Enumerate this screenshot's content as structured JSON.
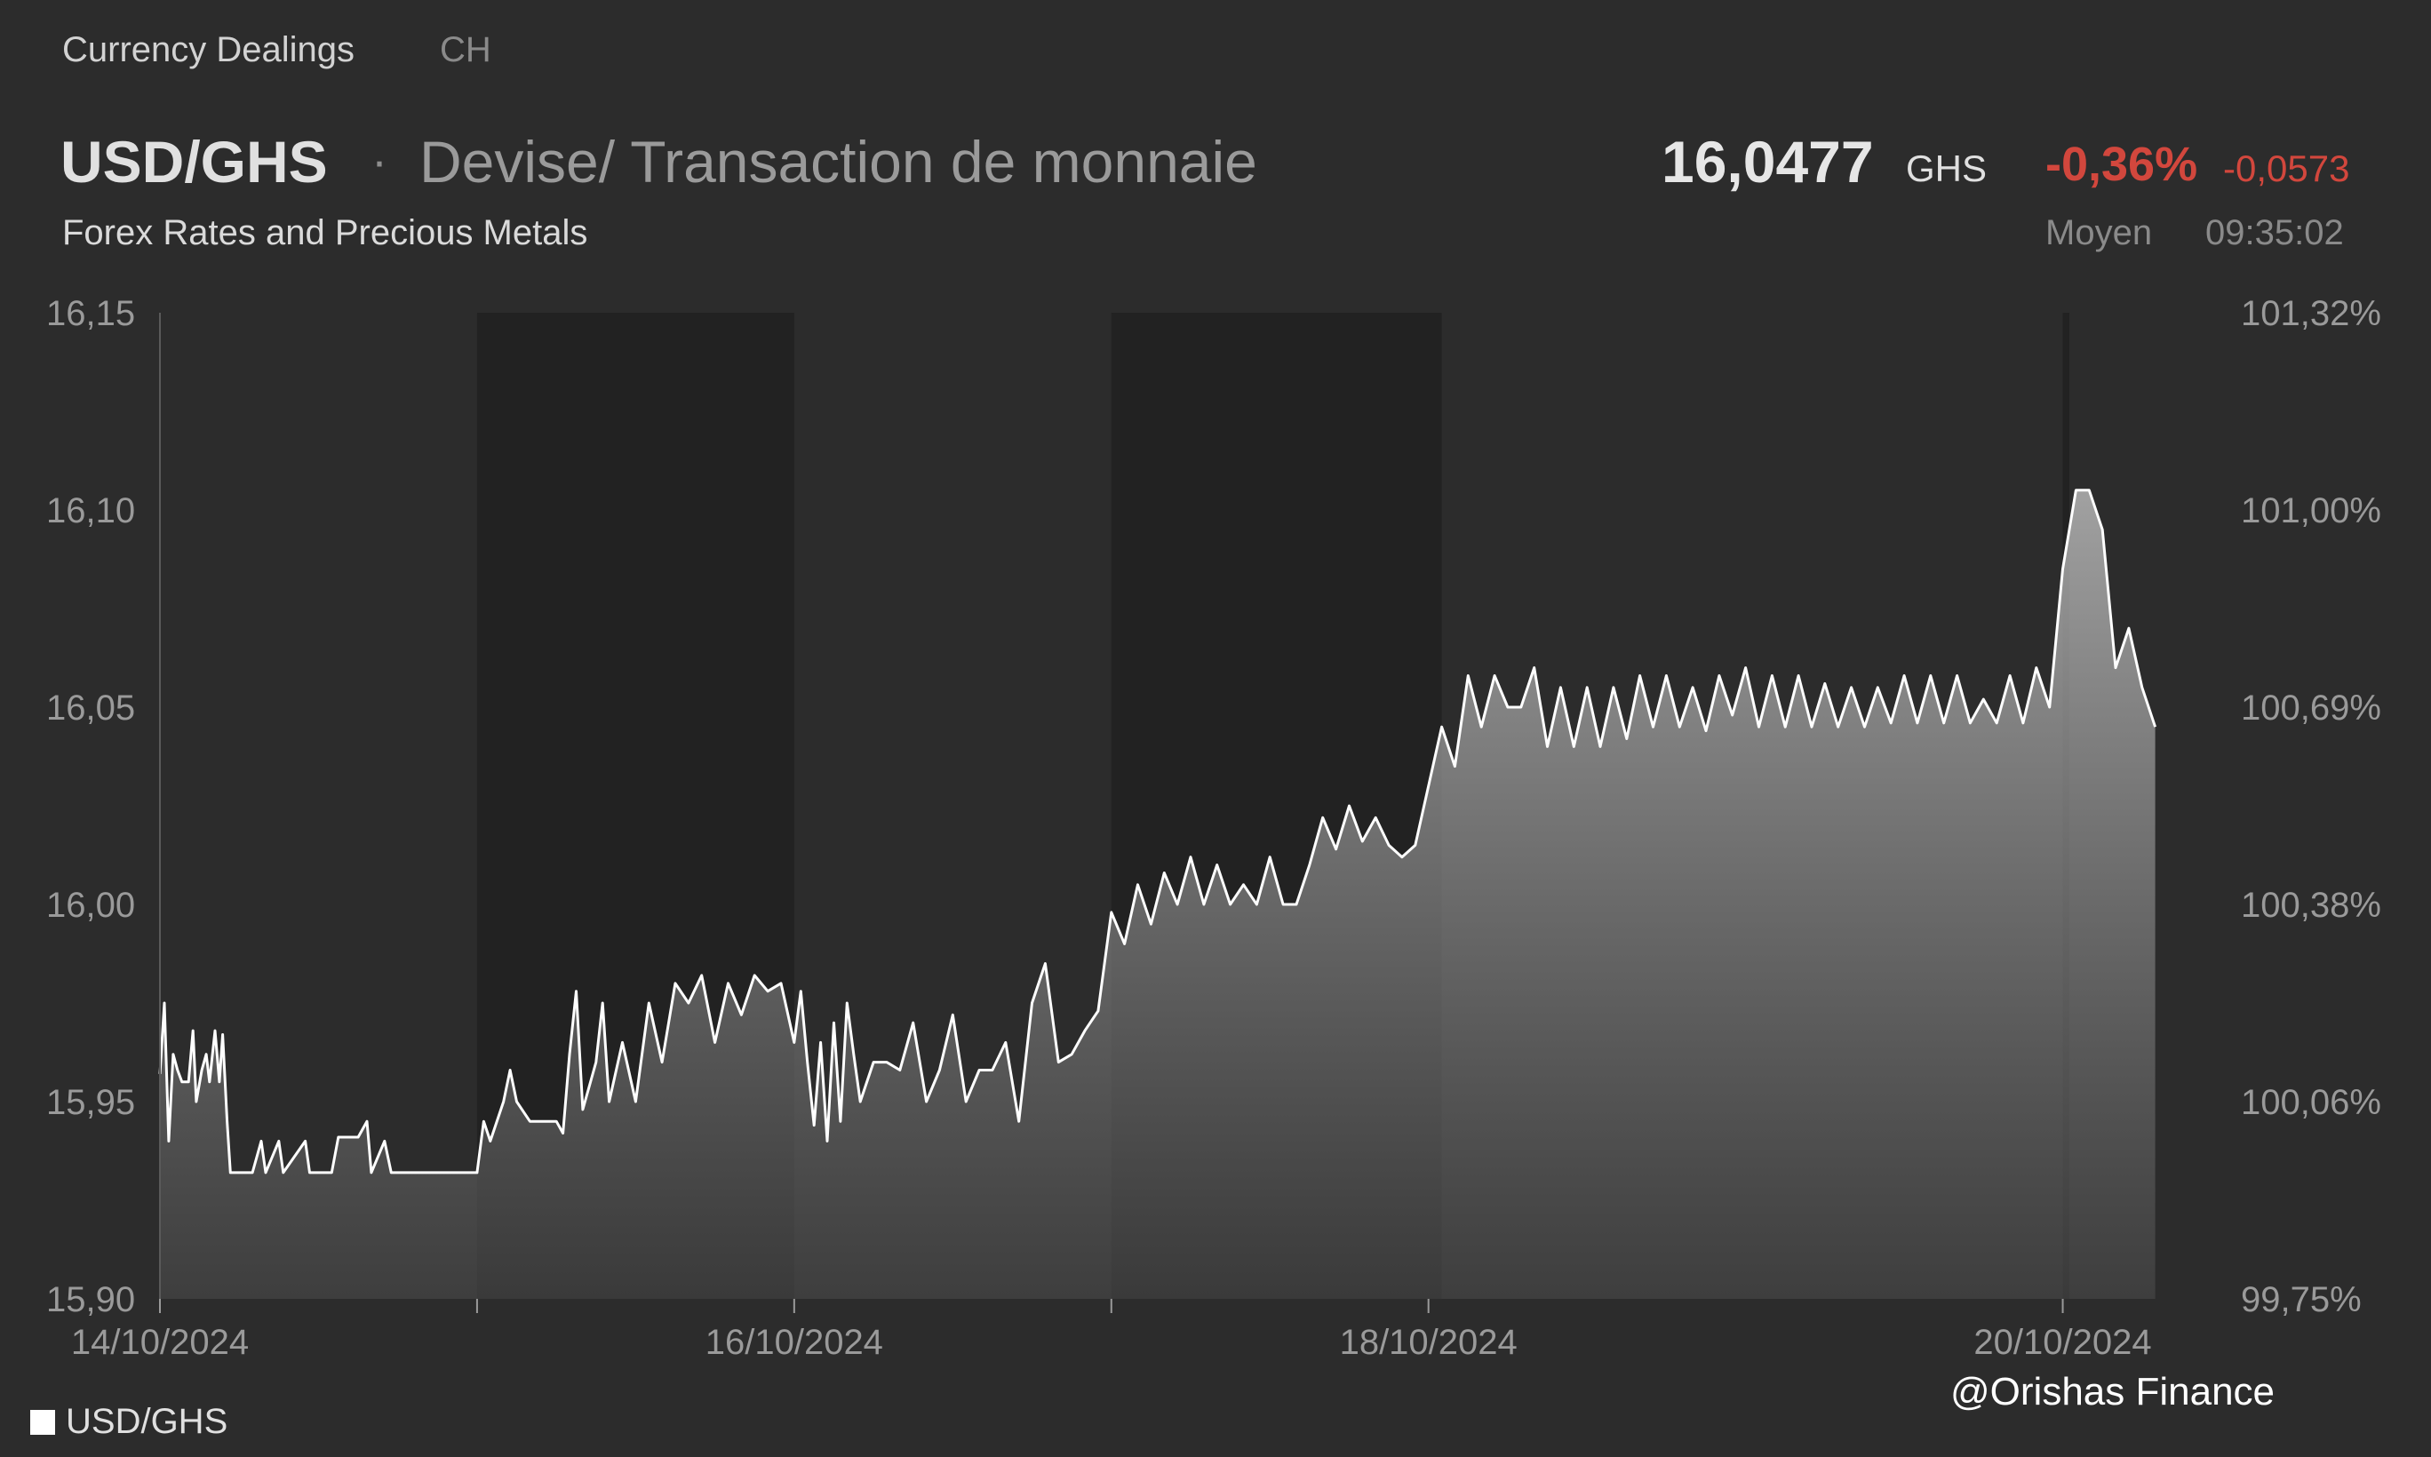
{
  "header": {
    "tab_label": "Currency Dealings",
    "tab_region": "CH",
    "pair": "USD/GHS",
    "separator": "·",
    "description": "Devise/ Transaction de monnaie",
    "source": "Forex Rates and Precious Metals",
    "price": "16,0477",
    "currency": "GHS",
    "change_pct": "-0,36%",
    "change_abs": "-0,0573",
    "price_type": "Moyen",
    "time": "09:35:02"
  },
  "legend": {
    "label": "USD/GHS"
  },
  "watermark": "@Orishas Finance",
  "colors": {
    "background": "#2c2c2c",
    "shade": "#222222",
    "line": "#ffffff",
    "negative": "#d2473d"
  },
  "chart_data": {
    "type": "area",
    "x_domain": [
      "14/10/2024",
      "20/10/2024 12:00"
    ],
    "ylim": [
      15.9,
      16.15
    ],
    "y_ticks": [
      "16,15",
      "16,10",
      "16,05",
      "16,00",
      "15,95",
      "15,90"
    ],
    "y2_ticks": [
      "101,32%",
      "101,00%",
      "100,69%",
      "100,38%",
      "100,06%",
      "99,75%"
    ],
    "x_tick_labels": [
      "14/10/2024",
      "16/10/2024",
      "18/10/2024",
      "20/10/2024"
    ],
    "minor_x_ticks": [
      "15/10/2024",
      "17/10/2024"
    ],
    "shaded_ranges": [
      [
        "15/10/2024",
        "16/10/2024"
      ],
      [
        "17/10/2024",
        "18/10/2024 01:00"
      ],
      [
        "20/10/2024",
        "20/10/2024 00:30"
      ]
    ],
    "series": [
      {
        "name": "USD/GHS",
        "points": [
          [
            "14/10/2024 00:00",
            15.957
          ],
          [
            "14/10/2024 00:20",
            15.975
          ],
          [
            "14/10/2024 00:40",
            15.94
          ],
          [
            "14/10/2024 01:00",
            15.962
          ],
          [
            "14/10/2024 01:20",
            15.958
          ],
          [
            "14/10/2024 01:40",
            15.955
          ],
          [
            "14/10/2024 02:10",
            15.955
          ],
          [
            "14/10/2024 02:30",
            15.968
          ],
          [
            "14/10/2024 02:45",
            15.95
          ],
          [
            "14/10/2024 03:10",
            15.958
          ],
          [
            "14/10/2024 03:30",
            15.962
          ],
          [
            "14/10/2024 03:45",
            15.955
          ],
          [
            "14/10/2024 04:10",
            15.968
          ],
          [
            "14/10/2024 04:30",
            15.955
          ],
          [
            "14/10/2024 04:45",
            15.967
          ],
          [
            "14/10/2024 05:05",
            15.945
          ],
          [
            "14/10/2024 05:20",
            15.932
          ],
          [
            "14/10/2024 07:00",
            15.932
          ],
          [
            "14/10/2024 07:40",
            15.94
          ],
          [
            "14/10/2024 08:00",
            15.932
          ],
          [
            "14/10/2024 09:00",
            15.94
          ],
          [
            "14/10/2024 09:20",
            15.932
          ],
          [
            "14/10/2024 11:00",
            15.94
          ],
          [
            "14/10/2024 11:20",
            15.932
          ],
          [
            "14/10/2024 13:00",
            15.932
          ],
          [
            "14/10/2024 13:30",
            15.941
          ],
          [
            "14/10/2024 15:00",
            15.941
          ],
          [
            "14/10/2024 15:40",
            15.945
          ],
          [
            "14/10/2024 16:00",
            15.932
          ],
          [
            "14/10/2024 17:00",
            15.94
          ],
          [
            "14/10/2024 17:30",
            15.932
          ],
          [
            "14/10/2024 20:00",
            15.932
          ],
          [
            "14/10/2024 21:00",
            15.932
          ],
          [
            "14/10/2024 22:00",
            15.932
          ],
          [
            "14/10/2024 23:00",
            15.932
          ],
          [
            "15/10/2024 00:00",
            15.932
          ],
          [
            "15/10/2024 00:30",
            15.945
          ],
          [
            "15/10/2024 01:00",
            15.94
          ],
          [
            "15/10/2024 02:00",
            15.95
          ],
          [
            "15/10/2024 02:30",
            15.958
          ],
          [
            "15/10/2024 03:00",
            15.95
          ],
          [
            "15/10/2024 04:00",
            15.945
          ],
          [
            "15/10/2024 06:00",
            15.945
          ],
          [
            "15/10/2024 06:30",
            15.942
          ],
          [
            "15/10/2024 07:00",
            15.962
          ],
          [
            "15/10/2024 07:30",
            15.978
          ],
          [
            "15/10/2024 08:00",
            15.948
          ],
          [
            "15/10/2024 09:00",
            15.96
          ],
          [
            "15/10/2024 09:30",
            15.975
          ],
          [
            "15/10/2024 10:00",
            15.95
          ],
          [
            "15/10/2024 11:00",
            15.965
          ],
          [
            "15/10/2024 12:00",
            15.95
          ],
          [
            "15/10/2024 13:00",
            15.975
          ],
          [
            "15/10/2024 14:00",
            15.96
          ],
          [
            "15/10/2024 15:00",
            15.98
          ],
          [
            "15/10/2024 16:00",
            15.975
          ],
          [
            "15/10/2024 17:00",
            15.982
          ],
          [
            "15/10/2024 18:00",
            15.965
          ],
          [
            "15/10/2024 19:00",
            15.98
          ],
          [
            "15/10/2024 20:00",
            15.972
          ],
          [
            "15/10/2024 21:00",
            15.982
          ],
          [
            "15/10/2024 22:00",
            15.978
          ],
          [
            "15/10/2024 23:00",
            15.98
          ],
          [
            "16/10/2024 00:00",
            15.965
          ],
          [
            "16/10/2024 00:30",
            15.978
          ],
          [
            "16/10/2024 01:00",
            15.96
          ],
          [
            "16/10/2024 01:30",
            15.944
          ],
          [
            "16/10/2024 02:00",
            15.965
          ],
          [
            "16/10/2024 02:30",
            15.94
          ],
          [
            "16/10/2024 03:00",
            15.97
          ],
          [
            "16/10/2024 03:30",
            15.945
          ],
          [
            "16/10/2024 04:00",
            15.975
          ],
          [
            "16/10/2024 04:30",
            15.962
          ],
          [
            "16/10/2024 05:00",
            15.95
          ],
          [
            "16/10/2024 06:00",
            15.96
          ],
          [
            "16/10/2024 07:00",
            15.96
          ],
          [
            "16/10/2024 08:00",
            15.958
          ],
          [
            "16/10/2024 09:00",
            15.97
          ],
          [
            "16/10/2024 10:00",
            15.95
          ],
          [
            "16/10/2024 11:00",
            15.958
          ],
          [
            "16/10/2024 12:00",
            15.972
          ],
          [
            "16/10/2024 13:00",
            15.95
          ],
          [
            "16/10/2024 14:00",
            15.958
          ],
          [
            "16/10/2024 15:00",
            15.958
          ],
          [
            "16/10/2024 16:00",
            15.965
          ],
          [
            "16/10/2024 17:00",
            15.945
          ],
          [
            "16/10/2024 18:00",
            15.975
          ],
          [
            "16/10/2024 19:00",
            15.985
          ],
          [
            "16/10/2024 20:00",
            15.96
          ],
          [
            "16/10/2024 21:00",
            15.962
          ],
          [
            "16/10/2024 22:00",
            15.968
          ],
          [
            "16/10/2024 23:00",
            15.973
          ],
          [
            "17/10/2024 00:00",
            15.998
          ],
          [
            "17/10/2024 01:00",
            15.99
          ],
          [
            "17/10/2024 02:00",
            16.005
          ],
          [
            "17/10/2024 03:00",
            15.995
          ],
          [
            "17/10/2024 04:00",
            16.008
          ],
          [
            "17/10/2024 05:00",
            16.0
          ],
          [
            "17/10/2024 06:00",
            16.012
          ],
          [
            "17/10/2024 07:00",
            16.0
          ],
          [
            "17/10/2024 08:00",
            16.01
          ],
          [
            "17/10/2024 09:00",
            16.0
          ],
          [
            "17/10/2024 10:00",
            16.005
          ],
          [
            "17/10/2024 11:00",
            16.0
          ],
          [
            "17/10/2024 12:00",
            16.012
          ],
          [
            "17/10/2024 13:00",
            16.0
          ],
          [
            "17/10/2024 14:00",
            16.0
          ],
          [
            "17/10/2024 15:00",
            16.01
          ],
          [
            "17/10/2024 16:00",
            16.022
          ],
          [
            "17/10/2024 17:00",
            16.014
          ],
          [
            "17/10/2024 18:00",
            16.025
          ],
          [
            "17/10/2024 19:00",
            16.016
          ],
          [
            "17/10/2024 20:00",
            16.022
          ],
          [
            "17/10/2024 21:00",
            16.015
          ],
          [
            "17/10/2024 22:00",
            16.012
          ],
          [
            "17/10/2024 23:00",
            16.015
          ],
          [
            "18/10/2024 00:00",
            16.03
          ],
          [
            "18/10/2024 01:00",
            16.045
          ],
          [
            "18/10/2024 02:00",
            16.035
          ],
          [
            "18/10/2024 03:00",
            16.058
          ],
          [
            "18/10/2024 04:00",
            16.045
          ],
          [
            "18/10/2024 05:00",
            16.058
          ],
          [
            "18/10/2024 06:00",
            16.05
          ],
          [
            "18/10/2024 07:00",
            16.05
          ],
          [
            "18/10/2024 08:00",
            16.06
          ],
          [
            "18/10/2024 09:00",
            16.04
          ],
          [
            "18/10/2024 10:00",
            16.055
          ],
          [
            "18/10/2024 11:00",
            16.04
          ],
          [
            "18/10/2024 12:00",
            16.055
          ],
          [
            "18/10/2024 13:00",
            16.04
          ],
          [
            "18/10/2024 14:00",
            16.055
          ],
          [
            "18/10/2024 15:00",
            16.042
          ],
          [
            "18/10/2024 16:00",
            16.058
          ],
          [
            "18/10/2024 17:00",
            16.045
          ],
          [
            "18/10/2024 18:00",
            16.058
          ],
          [
            "18/10/2024 19:00",
            16.045
          ],
          [
            "18/10/2024 20:00",
            16.055
          ],
          [
            "18/10/2024 21:00",
            16.044
          ],
          [
            "18/10/2024 22:00",
            16.058
          ],
          [
            "18/10/2024 23:00",
            16.048
          ],
          [
            "19/10/2024 00:00",
            16.06
          ],
          [
            "19/10/2024 01:00",
            16.045
          ],
          [
            "19/10/2024 02:00",
            16.058
          ],
          [
            "19/10/2024 03:00",
            16.045
          ],
          [
            "19/10/2024 04:00",
            16.058
          ],
          [
            "19/10/2024 05:00",
            16.045
          ],
          [
            "19/10/2024 06:00",
            16.056
          ],
          [
            "19/10/2024 07:00",
            16.045
          ],
          [
            "19/10/2024 08:00",
            16.055
          ],
          [
            "19/10/2024 09:00",
            16.045
          ],
          [
            "19/10/2024 10:00",
            16.055
          ],
          [
            "19/10/2024 11:00",
            16.046
          ],
          [
            "19/10/2024 12:00",
            16.058
          ],
          [
            "19/10/2024 13:00",
            16.046
          ],
          [
            "19/10/2024 14:00",
            16.058
          ],
          [
            "19/10/2024 15:00",
            16.046
          ],
          [
            "19/10/2024 16:00",
            16.058
          ],
          [
            "19/10/2024 17:00",
            16.046
          ],
          [
            "19/10/2024 18:00",
            16.052
          ],
          [
            "19/10/2024 19:00",
            16.046
          ],
          [
            "19/10/2024 20:00",
            16.058
          ],
          [
            "19/10/2024 21:00",
            16.046
          ],
          [
            "19/10/2024 22:00",
            16.06
          ],
          [
            "19/10/2024 23:00",
            16.05
          ],
          [
            "20/10/2024 00:00",
            16.085
          ],
          [
            "20/10/2024 01:00",
            16.105
          ],
          [
            "20/10/2024 02:00",
            16.105
          ],
          [
            "20/10/2024 03:00",
            16.095
          ],
          [
            "20/10/2024 04:00",
            16.06
          ],
          [
            "20/10/2024 05:00",
            16.07
          ],
          [
            "20/10/2024 06:00",
            16.055
          ],
          [
            "20/10/2024 07:00",
            16.045
          ]
        ]
      }
    ]
  }
}
